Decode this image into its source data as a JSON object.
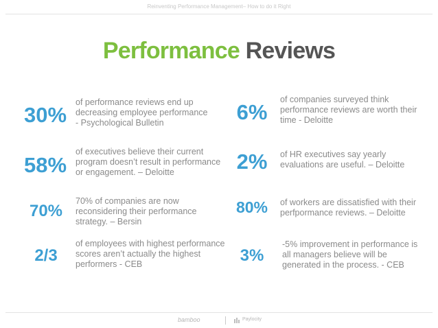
{
  "header": {
    "text": "Reinventing Performance Management– How to do it Right"
  },
  "title": {
    "word1": "Performance",
    "word2": "Reviews"
  },
  "stats": [
    {
      "value": "30%",
      "lines": [
        "of performance reviews end up",
        "decreasing employee performance",
        "- Psychological Bulletin"
      ]
    },
    {
      "value": "6%",
      "lines": [
        "of companies surveyed think",
        "performance reviews are worth their",
        "time - Deloitte"
      ]
    },
    {
      "value": "58%",
      "lines": [
        "of executives believe their current",
        "program doesn’t result in performance",
        "or engagement. – Deloitte"
      ]
    },
    {
      "value": "2%",
      "lines": [
        "of HR executives say yearly",
        "evaluations are useful. – Deloitte"
      ]
    },
    {
      "value": "70%",
      "lines": [
        "70% of companies are now",
        "reconsidering their performance",
        "strategy. – Bersin"
      ]
    },
    {
      "value": "80%",
      "lines": [
        "of workers are dissatisfied with their",
        "perfpormance reviews. – Deloitte"
      ]
    },
    {
      "value": "2/3",
      "lines": [
        "of employees with highest performance",
        "scores aren’t actually the highest",
        "performers - CEB"
      ]
    },
    {
      "value": "3%",
      "lines": [
        "-5% improvement in performance is",
        "all managers believe will be",
        "generated in the process. - CEB"
      ]
    }
  ],
  "footer": {
    "brand_left": "bamboo",
    "brand_right": "Paylocity"
  },
  "colors": {
    "accent_green": "#7dbf3f",
    "title_gray": "#555555",
    "stat_blue": "#3d9fd3",
    "text_gray": "#8a8a8a"
  }
}
